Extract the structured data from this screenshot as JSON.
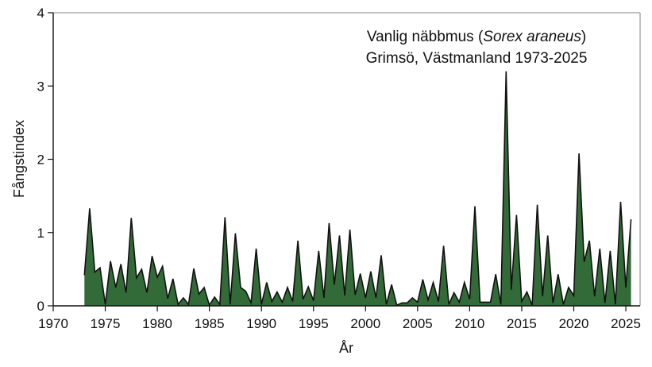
{
  "chart_data": {
    "type": "area",
    "title": [
      "Vanlig näbbmus (Sorex araneus)",
      "Grimsö, Västmanland 1973-2025"
    ],
    "title_parts": {
      "line1_prefix": "Vanlig näbbmus (",
      "line1_italic": "Sorex araneus",
      "line1_suffix": ")",
      "line2": "Grimsö, Västmanland 1973-2025"
    },
    "xlabel": "År",
    "ylabel": "Fångstindex",
    "xlim": [
      1970,
      2027
    ],
    "ylim": [
      0,
      4
    ],
    "xticks": [
      1970,
      1975,
      1980,
      1985,
      1990,
      1995,
      2000,
      2005,
      2010,
      2015,
      2020,
      2025
    ],
    "yticks": [
      0,
      1,
      2,
      3,
      4
    ],
    "grid": false,
    "legend": null,
    "fill_color": "#336b38",
    "line_color": "#111111",
    "series": [
      {
        "name": "Vanlig näbbmus",
        "x": [
          1973.0,
          1973.5,
          1974.0,
          1974.5,
          1975.0,
          1975.5,
          1976.0,
          1976.5,
          1977.0,
          1977.5,
          1978.0,
          1978.5,
          1979.0,
          1979.5,
          1980.0,
          1980.5,
          1981.0,
          1981.5,
          1982.0,
          1982.5,
          1983.0,
          1983.5,
          1984.0,
          1984.5,
          1985.0,
          1985.5,
          1986.0,
          1986.5,
          1987.0,
          1987.5,
          1988.0,
          1988.5,
          1989.0,
          1989.5,
          1990.0,
          1990.5,
          1991.0,
          1991.5,
          1992.0,
          1992.5,
          1993.0,
          1993.5,
          1994.0,
          1994.5,
          1995.0,
          1995.5,
          1996.0,
          1996.5,
          1997.0,
          1997.5,
          1998.0,
          1998.5,
          1999.0,
          1999.5,
          2000.0,
          2000.5,
          2001.0,
          2001.5,
          2002.0,
          2002.5,
          2003.0,
          2003.5,
          2004.0,
          2004.5,
          2005.0,
          2005.5,
          2006.0,
          2006.5,
          2007.0,
          2007.5,
          2008.0,
          2008.5,
          2009.0,
          2009.5,
          2010.0,
          2010.5,
          2011.0,
          2011.5,
          2012.0,
          2012.5,
          2013.0,
          2013.5,
          2014.0,
          2014.5,
          2015.0,
          2015.5,
          2016.0,
          2016.5,
          2017.0,
          2017.5,
          2018.0,
          2018.5,
          2019.0,
          2019.5,
          2020.0,
          2020.5,
          2021.0,
          2021.5,
          2022.0,
          2022.5,
          2023.0,
          2023.5,
          2024.0,
          2024.5,
          2025.0,
          2025.5
        ],
        "values": [
          0.42,
          1.33,
          0.46,
          0.52,
          0.02,
          0.61,
          0.25,
          0.57,
          0.18,
          1.2,
          0.38,
          0.5,
          0.18,
          0.68,
          0.39,
          0.54,
          0.1,
          0.37,
          0.02,
          0.11,
          0.02,
          0.51,
          0.16,
          0.25,
          0.01,
          0.12,
          0.02,
          1.21,
          0.02,
          0.99,
          0.25,
          0.2,
          0.04,
          0.78,
          0.02,
          0.32,
          0.06,
          0.19,
          0.05,
          0.25,
          0.06,
          0.89,
          0.09,
          0.26,
          0.07,
          0.75,
          0.11,
          1.13,
          0.29,
          0.96,
          0.14,
          1.04,
          0.15,
          0.44,
          0.11,
          0.47,
          0.11,
          0.69,
          0.02,
          0.29,
          0.01,
          0.04,
          0.04,
          0.11,
          0.05,
          0.36,
          0.08,
          0.32,
          0.06,
          0.82,
          0.02,
          0.18,
          0.05,
          0.32,
          0.09,
          1.36,
          0.05,
          0.05,
          0.05,
          0.43,
          0.02,
          3.2,
          0.22,
          1.24,
          0.06,
          0.19,
          0.01,
          1.38,
          0.13,
          0.96,
          0.04,
          0.43,
          0.02,
          0.25,
          0.14,
          2.08,
          0.6,
          0.89,
          0.13,
          0.78,
          0.04,
          0.75,
          0.02,
          1.42,
          0.25,
          1.18
        ]
      }
    ]
  }
}
